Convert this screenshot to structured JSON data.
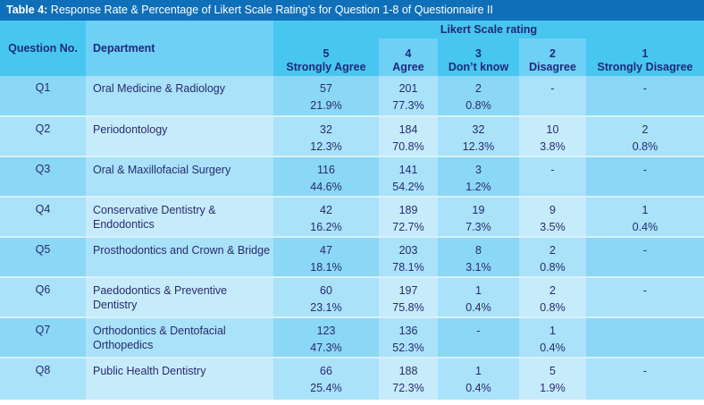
{
  "title": {
    "label": "Table 4:",
    "text": " Response Rate & Percentage of Likert Scale Rating’s for Question 1-8 of Questionnaire II"
  },
  "header": {
    "question_no": "Question No.",
    "department": "Department",
    "likert_group": "Likert Scale rating",
    "scale": [
      {
        "num": "5",
        "label": "Strongly Agree"
      },
      {
        "num": "4",
        "label": "Agree"
      },
      {
        "num": "3",
        "label": "Don’t know"
      },
      {
        "num": "2",
        "label": "Disagree"
      },
      {
        "num": "1",
        "label": "Strongly Disagree"
      }
    ]
  },
  "rows": [
    {
      "q": "Q1",
      "dept": "Oral Medicine & Radiology",
      "values": [
        {
          "n": "57",
          "p": "21.9%"
        },
        {
          "n": "201",
          "p": "77.3%"
        },
        {
          "n": "2",
          "p": "0.8%"
        },
        {
          "n": "-",
          "p": ""
        },
        {
          "n": "-",
          "p": ""
        }
      ]
    },
    {
      "q": "Q2",
      "dept": "Periodontology",
      "values": [
        {
          "n": "32",
          "p": "12.3%"
        },
        {
          "n": "184",
          "p": "70.8%"
        },
        {
          "n": "32",
          "p": "12.3%"
        },
        {
          "n": "10",
          "p": "3.8%"
        },
        {
          "n": "2",
          "p": "0.8%"
        }
      ]
    },
    {
      "q": "Q3",
      "dept": "Oral & Maxillofacial Surgery",
      "values": [
        {
          "n": "116",
          "p": "44.6%"
        },
        {
          "n": "141",
          "p": "54.2%"
        },
        {
          "n": "3",
          "p": "1.2%"
        },
        {
          "n": "-",
          "p": ""
        },
        {
          "n": "-",
          "p": ""
        }
      ]
    },
    {
      "q": "Q4",
      "dept": "Conservative Dentistry & Endodontics",
      "values": [
        {
          "n": "42",
          "p": "16.2%"
        },
        {
          "n": "189",
          "p": "72.7%"
        },
        {
          "n": "19",
          "p": "7.3%"
        },
        {
          "n": "9",
          "p": "3.5%"
        },
        {
          "n": "1",
          "p": "0.4%"
        }
      ]
    },
    {
      "q": "Q5",
      "dept": "Prosthodontics and Crown & Bridge",
      "values": [
        {
          "n": "47",
          "p": "18.1%"
        },
        {
          "n": "203",
          "p": "78.1%"
        },
        {
          "n": "8",
          "p": "3.1%"
        },
        {
          "n": "2",
          "p": "0.8%"
        },
        {
          "n": "-",
          "p": ""
        }
      ]
    },
    {
      "q": "Q6",
      "dept": "Paedodontics & Preventive Dentistry",
      "values": [
        {
          "n": "60",
          "p": "23.1%"
        },
        {
          "n": "197",
          "p": "75.8%"
        },
        {
          "n": "1",
          "p": "0.4%"
        },
        {
          "n": "2",
          "p": "0.8%"
        },
        {
          "n": "-",
          "p": ""
        }
      ]
    },
    {
      "q": "Q7",
      "dept": "Orthodontics & Dentofacial Orthopedics",
      "values": [
        {
          "n": "123",
          "p": "47.3%"
        },
        {
          "n": "136",
          "p": "52.3%"
        },
        {
          "n": "-",
          "p": ""
        },
        {
          "n": "1",
          "p": "0.4%"
        },
        {
          "n": "",
          "p": ""
        }
      ]
    },
    {
      "q": "Q8",
      "dept": "Public Health Dentistry",
      "values": [
        {
          "n": "66",
          "p": "25.4%"
        },
        {
          "n": "188",
          "p": "72.3%"
        },
        {
          "n": "1",
          "p": "0.4%"
        },
        {
          "n": "5",
          "p": "1.9%"
        },
        {
          "n": "-",
          "p": ""
        }
      ]
    }
  ]
}
